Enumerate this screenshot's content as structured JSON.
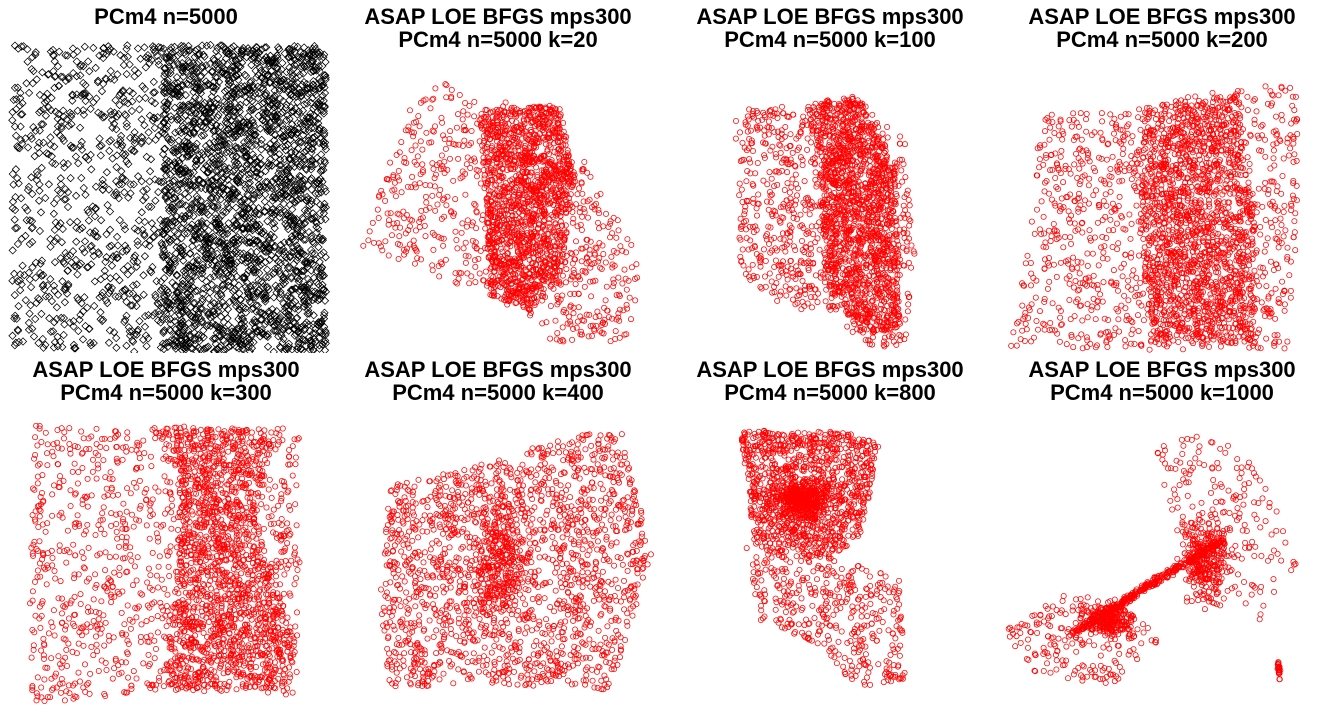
{
  "figure": {
    "panels": [
      {
        "id": "pcm4",
        "title_line1": "PCm4 n=5000",
        "title_line2": "",
        "marker": "diamond",
        "color": "#000000"
      },
      {
        "id": "k20",
        "title_line1": "ASAP LOE BFGS mps300",
        "title_line2": "PCm4 n=5000 k=20",
        "marker": "circle",
        "color": "#ff0000"
      },
      {
        "id": "k100",
        "title_line1": "ASAP LOE BFGS mps300",
        "title_line2": "PCm4 n=5000 k=100",
        "marker": "circle",
        "color": "#ff0000"
      },
      {
        "id": "k200",
        "title_line1": "ASAP LOE BFGS mps300",
        "title_line2": "PCm4 n=5000 k=200",
        "marker": "circle",
        "color": "#ff0000"
      },
      {
        "id": "k300",
        "title_line1": "ASAP LOE BFGS mps300",
        "title_line2": "PCm4 n=5000 k=300",
        "marker": "circle",
        "color": "#ff0000"
      },
      {
        "id": "k400",
        "title_line1": "ASAP LOE BFGS mps300",
        "title_line2": "PCm4 n=5000 k=400",
        "marker": "circle",
        "color": "#ff0000"
      },
      {
        "id": "k800",
        "title_line1": "ASAP LOE BFGS mps300",
        "title_line2": "PCm4 n=5000 k=800",
        "marker": "circle",
        "color": "#ff0000"
      },
      {
        "id": "k1000",
        "title_line1": "ASAP LOE BFGS mps300",
        "title_line2": "PCm4 n=5000 k=1000",
        "marker": "circle",
        "color": "#ff0000"
      }
    ]
  },
  "chart_data": [
    {
      "type": "scatter",
      "title": "PCm4 n=5000",
      "n_points": 5000,
      "marker": "diamond",
      "color": "#000000",
      "axes_shown": false,
      "grid": false
    },
    {
      "type": "scatter",
      "title": "ASAP LOE BFGS mps300 PCm4 n=5000 k=20",
      "n_points": 5000,
      "marker": "circle",
      "color": "#ff0000",
      "axes_shown": false,
      "grid": false
    },
    {
      "type": "scatter",
      "title": "ASAP LOE BFGS mps300 PCm4 n=5000 k=100",
      "n_points": 5000,
      "marker": "circle",
      "color": "#ff0000",
      "axes_shown": false,
      "grid": false
    },
    {
      "type": "scatter",
      "title": "ASAP LOE BFGS mps300 PCm4 n=5000 k=200",
      "n_points": 5000,
      "marker": "circle",
      "color": "#ff0000",
      "axes_shown": false,
      "grid": false
    },
    {
      "type": "scatter",
      "title": "ASAP LOE BFGS mps300 PCm4 n=5000 k=300",
      "n_points": 5000,
      "marker": "circle",
      "color": "#ff0000",
      "axes_shown": false,
      "grid": false
    },
    {
      "type": "scatter",
      "title": "ASAP LOE BFGS mps300 PCm4 n=5000 k=400",
      "n_points": 5000,
      "marker": "circle",
      "color": "#ff0000",
      "axes_shown": false,
      "grid": false
    },
    {
      "type": "scatter",
      "title": "ASAP LOE BFGS mps300 PCm4 n=5000 k=800",
      "n_points": 5000,
      "marker": "circle",
      "color": "#ff0000",
      "axes_shown": false,
      "grid": false
    },
    {
      "type": "scatter",
      "title": "ASAP LOE BFGS mps300 PCm4 n=5000 k=1000",
      "n_points": 5000,
      "marker": "circle",
      "color": "#ff0000",
      "axes_shown": false,
      "grid": false
    }
  ]
}
